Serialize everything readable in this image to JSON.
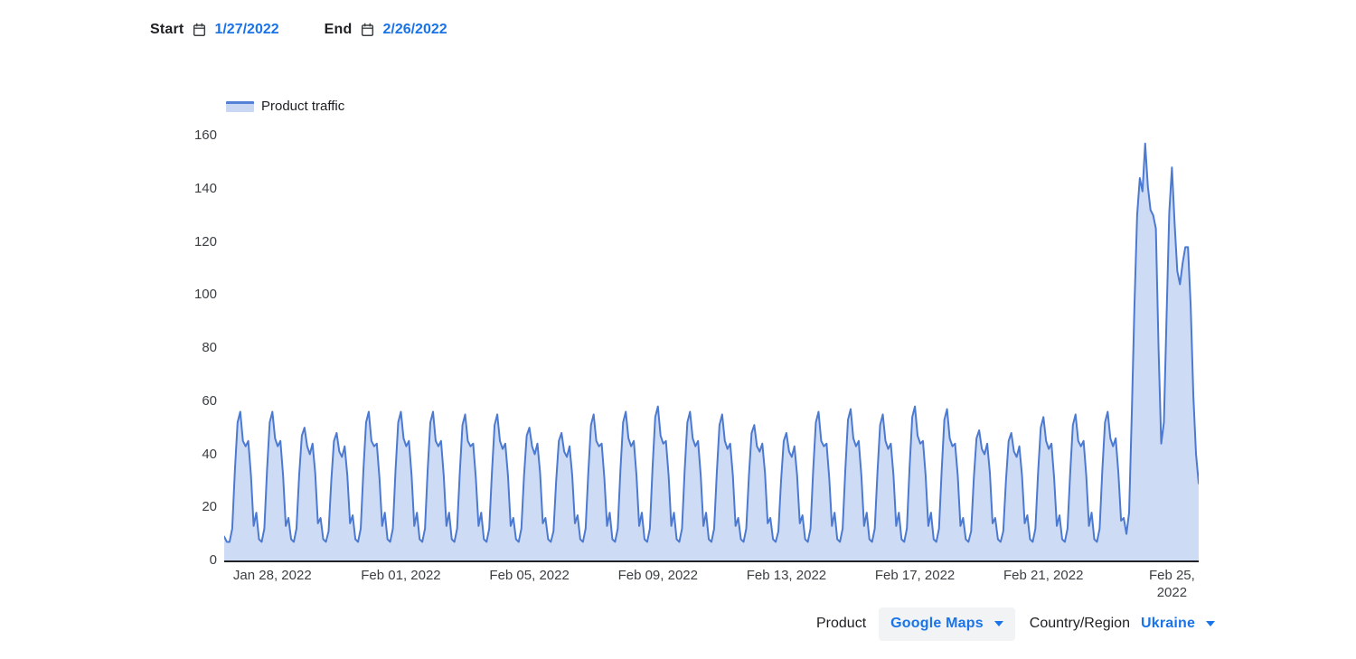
{
  "header": {
    "start_label": "Start",
    "start_date": "1/27/2022",
    "end_label": "End",
    "end_date": "2/26/2022"
  },
  "legend": {
    "label": "Product traffic"
  },
  "filters": {
    "product_label": "Product",
    "product_value": "Google Maps",
    "region_label": "Country/Region",
    "region_value": "Ukraine"
  },
  "colors": {
    "link_blue": "#1a73e8",
    "line_blue": "#4c7ad1",
    "fill_blue": "#cedbf5",
    "text_dark": "#202124",
    "text_gray": "#3c4043",
    "chip_bg": "#f1f3f4",
    "axis": "#202124"
  },
  "chart_data": {
    "type": "area",
    "title": "Product traffic",
    "date_range_start": "1/27/2022",
    "date_range_end": "2/26/2022",
    "ylim": [
      0,
      160
    ],
    "y_ticks": [
      0,
      20,
      40,
      60,
      80,
      100,
      120,
      140,
      160
    ],
    "x_tick_labels": [
      "Jan 28, 2022",
      "Feb 01, 2022",
      "Feb 05, 2022",
      "Feb 09, 2022",
      "Feb 13, 2022",
      "Feb 17, 2022",
      "Feb 21, 2022",
      "Feb 25, 2022"
    ],
    "x_tick_day_index": [
      1,
      5,
      9,
      13,
      17,
      21,
      25,
      29
    ],
    "grid": "off",
    "legend_position": "top-left",
    "samples_per_day": 12,
    "sampling_interval_hours": 2,
    "first_day": "Jan 27, 2022",
    "series": [
      {
        "name": "Product traffic",
        "line_color": "#4c7ad1",
        "fill_color": "#cedbf5",
        "daily_values": [
          [
            9,
            7,
            7,
            12,
            34,
            52,
            56,
            45,
            43,
            45,
            32,
            13
          ],
          [
            18,
            8,
            7,
            12,
            34,
            52,
            56,
            46,
            43,
            45,
            32,
            13
          ],
          [
            16,
            8,
            7,
            12,
            32,
            47,
            50,
            43,
            40,
            44,
            33,
            14
          ],
          [
            16,
            8,
            7,
            11,
            30,
            45,
            48,
            41,
            39,
            43,
            32,
            14
          ],
          [
            17,
            8,
            7,
            12,
            34,
            52,
            56,
            45,
            43,
            44,
            31,
            13
          ],
          [
            18,
            8,
            7,
            12,
            34,
            52,
            56,
            46,
            43,
            45,
            32,
            13
          ],
          [
            18,
            8,
            7,
            12,
            34,
            52,
            56,
            45,
            43,
            45,
            32,
            13
          ],
          [
            18,
            8,
            7,
            12,
            33,
            51,
            55,
            45,
            43,
            44,
            31,
            13
          ],
          [
            18,
            8,
            7,
            12,
            33,
            51,
            55,
            45,
            42,
            44,
            32,
            13
          ],
          [
            16,
            8,
            7,
            12,
            32,
            47,
            50,
            43,
            40,
            44,
            33,
            14
          ],
          [
            16,
            8,
            7,
            11,
            30,
            45,
            48,
            41,
            39,
            43,
            32,
            14
          ],
          [
            17,
            8,
            7,
            12,
            33,
            51,
            55,
            45,
            43,
            44,
            31,
            13
          ],
          [
            18,
            8,
            7,
            12,
            34,
            52,
            56,
            46,
            43,
            45,
            32,
            13
          ],
          [
            18,
            8,
            7,
            12,
            35,
            54,
            58,
            47,
            44,
            45,
            32,
            13
          ],
          [
            18,
            8,
            7,
            12,
            34,
            52,
            56,
            46,
            43,
            45,
            32,
            13
          ],
          [
            18,
            8,
            7,
            12,
            33,
            51,
            55,
            45,
            42,
            44,
            32,
            13
          ],
          [
            16,
            8,
            7,
            12,
            32,
            48,
            51,
            43,
            41,
            44,
            33,
            14
          ],
          [
            16,
            8,
            7,
            11,
            30,
            45,
            48,
            41,
            39,
            43,
            32,
            14
          ],
          [
            17,
            8,
            7,
            12,
            34,
            52,
            56,
            45,
            43,
            44,
            31,
            13
          ],
          [
            18,
            8,
            7,
            12,
            34,
            53,
            57,
            46,
            43,
            45,
            32,
            13
          ],
          [
            18,
            8,
            7,
            12,
            33,
            51,
            55,
            45,
            42,
            44,
            32,
            13
          ],
          [
            18,
            8,
            7,
            12,
            35,
            54,
            58,
            47,
            44,
            45,
            32,
            13
          ],
          [
            18,
            8,
            7,
            12,
            34,
            53,
            57,
            46,
            43,
            44,
            32,
            13
          ],
          [
            16,
            8,
            7,
            11,
            31,
            46,
            49,
            42,
            40,
            44,
            33,
            14
          ],
          [
            16,
            8,
            7,
            11,
            30,
            45,
            48,
            41,
            39,
            43,
            32,
            14
          ],
          [
            17,
            8,
            7,
            12,
            33,
            50,
            54,
            45,
            42,
            44,
            31,
            13
          ],
          [
            17,
            8,
            7,
            12,
            33,
            51,
            55,
            45,
            43,
            45,
            32,
            13
          ],
          [
            18,
            8,
            7,
            12,
            34,
            52,
            56,
            46,
            43,
            46,
            33,
            15
          ],
          [
            16,
            10,
            18,
            55,
            96,
            130,
            144,
            139,
            157,
            141,
            132,
            130
          ],
          [
            125,
            80,
            44,
            52,
            92,
            131,
            148,
            127,
            109,
            104,
            112,
            118
          ],
          [
            118,
            96,
            62,
            40,
            29
          ]
        ]
      }
    ]
  }
}
